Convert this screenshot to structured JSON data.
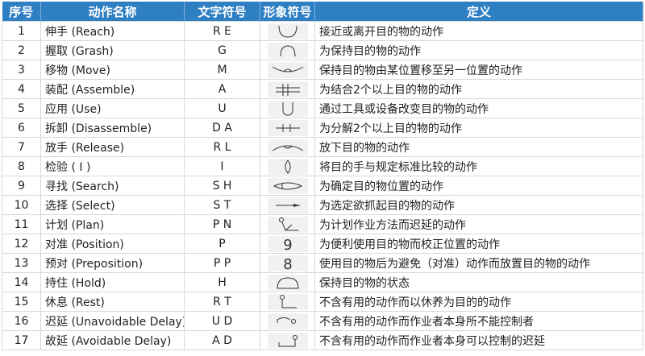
{
  "headers": [
    "序号",
    "动作名称",
    "文字符号",
    "形象符号",
    "定义"
  ],
  "colors": {
    "header_bg": "#2f7fc3",
    "header_text": "#ffffff"
  },
  "rows": [
    {
      "no": "1",
      "name": "伸手 (Reach)",
      "code": "R E",
      "icon": "reach-symbol",
      "def": "接近或离开目的物的动作"
    },
    {
      "no": "2",
      "name": "握取 (Grash)",
      "code": "G",
      "icon": "grasp-symbol",
      "def": "为保持目的物的动作"
    },
    {
      "no": "3",
      "name": "移物 (Move)",
      "code": "M",
      "icon": "move-symbol",
      "def": "保持目的物由某位置移至另一位置的动作"
    },
    {
      "no": "4",
      "name": "装配 (Assemble)",
      "code": "A",
      "icon": "assemble-symbol",
      "def": "为结合2个以上目的物的动作"
    },
    {
      "no": "5",
      "name": "应用 (Use)",
      "code": "U",
      "icon": "use-symbol",
      "def": "通过工具或设备改变目的物的动作"
    },
    {
      "no": "6",
      "name": "拆卸 (Disassemble)",
      "code": "D A",
      "icon": "disassemble-symbol",
      "def": "为分解2个以上目的物的动作"
    },
    {
      "no": "7",
      "name": "放手 (Release)",
      "code": "R L",
      "icon": "release-symbol",
      "def": "放下目的物的动作"
    },
    {
      "no": "8",
      "name": "检验 ( I )",
      "code": "I",
      "icon": "inspect-symbol",
      "def": "将目的手与规定标准比较的动作"
    },
    {
      "no": "9",
      "name": "寻找 (Search)",
      "code": "S H",
      "icon": "search-symbol",
      "def": "为确定目的物位置的动作"
    },
    {
      "no": "10",
      "name": "选择 (Select)",
      "code": "S T",
      "icon": "select-symbol",
      "def": "为选定欲抓起目的物的动作"
    },
    {
      "no": "11",
      "name": "计划 (Plan)",
      "code": "P N",
      "icon": "plan-symbol",
      "def": "为计划作业方法而迟延的动作"
    },
    {
      "no": "12",
      "name": "对准 (Position)",
      "code": "P",
      "icon": "position-symbol",
      "def": "为便利使用目的物而校正位置的动作"
    },
    {
      "no": "13",
      "name": "预对 (Preposition)",
      "code": "P P",
      "icon": "preposition-symbol",
      "def": "使用目的物后为避免（对准）动作而放置目的物的动作"
    },
    {
      "no": "14",
      "name": "持住 (Hold)",
      "code": "H",
      "icon": "hold-symbol",
      "def": "保持目的物的状态"
    },
    {
      "no": "15",
      "name": "休息 (Rest)",
      "code": "R T",
      "icon": "rest-symbol",
      "def": "不含有用的动作而以休养为目的的动作"
    },
    {
      "no": "16",
      "name": "迟延 (Unavoidable Delay)",
      "code": "U D",
      "icon": "unavoidable-delay-symbol",
      "def": "不含有用的动作而作业者本身所不能控制者"
    },
    {
      "no": "17",
      "name": "故延 (Avoidable Delay)",
      "code": "A D",
      "icon": "avoidable-delay-symbol",
      "def": "不含有用的动作而作业者本身可以控制的迟延"
    }
  ]
}
